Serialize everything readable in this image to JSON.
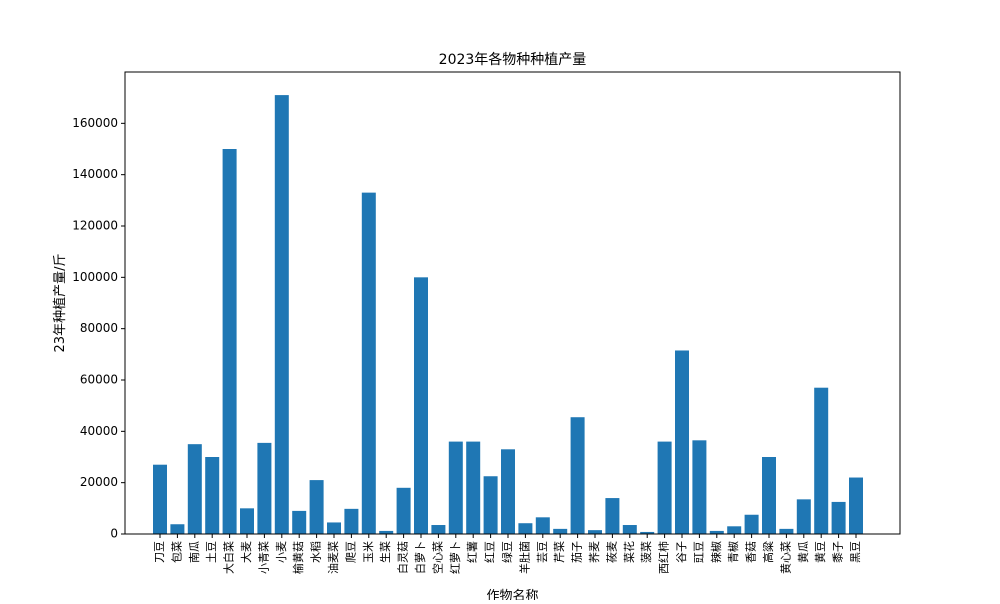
{
  "chart_data": {
    "type": "bar",
    "title": "2023年各物种种植产量",
    "xlabel": "作物名称",
    "ylabel": "23年种植产量/斤",
    "ylim": [
      0,
      180000
    ],
    "yticks": [
      0,
      20000,
      40000,
      60000,
      80000,
      100000,
      120000,
      140000,
      160000
    ],
    "ytick_labels": [
      "0",
      "20000",
      "40000",
      "60000",
      "80000",
      "100000",
      "120000",
      "140000",
      "160000"
    ],
    "bar_color": "#1f77b4",
    "grid": false,
    "categories": [
      "刀豆",
      "包菜",
      "南瓜",
      "土豆",
      "大白菜",
      "大麦",
      "小青菜",
      "小麦",
      "榆黄菇",
      "水稻",
      "油麦菜",
      "爬豆",
      "玉米",
      "生菜",
      "白灵菇",
      "白萝卜",
      "空心菜",
      "红萝卜",
      "红薯",
      "红豆",
      "绿豆",
      "羊肚菌",
      "芸豆",
      "芹菜",
      "茄子",
      "荞麦",
      "莜麦",
      "菜花",
      "菠菜",
      "西红柿",
      "谷子",
      "豇豆",
      "辣椒",
      "青椒",
      "香菇",
      "高粱",
      "黄心菜",
      "黄瓜",
      "黄豆",
      "黍子",
      "黑豆"
    ],
    "values": [
      27000,
      3800,
      35000,
      30000,
      150000,
      10000,
      35500,
      171000,
      9000,
      21000,
      4500,
      9800,
      133000,
      1200,
      18000,
      100000,
      3500,
      36000,
      36000,
      22500,
      33000,
      4200,
      6500,
      2000,
      45500,
      1500,
      14000,
      3500,
      800,
      36000,
      71500,
      36500,
      1200,
      3000,
      7500,
      30000,
      2000,
      13500,
      57000,
      12500,
      22000
    ]
  }
}
